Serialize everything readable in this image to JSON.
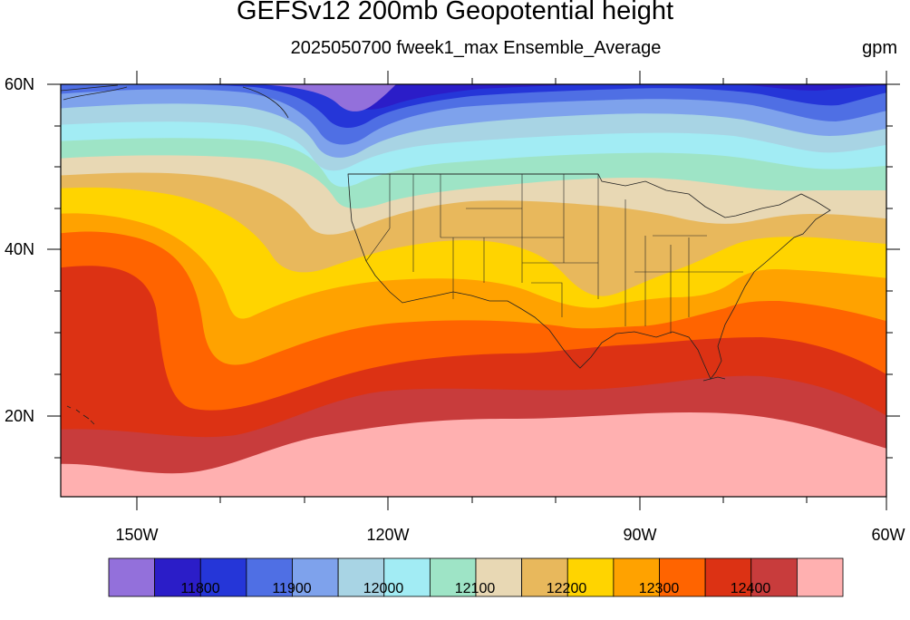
{
  "title": "GEFSv12 200mb Geopotential height",
  "subtitle": "2025050700 fweek1_max Ensemble_Average",
  "units": "gpm",
  "lat_labels": [
    "60N",
    "40N",
    "20N"
  ],
  "lon_labels": [
    "150W",
    "120W",
    "90W",
    "60W"
  ],
  "colorbar": {
    "colors": [
      "#9370db",
      "#2b1dc8",
      "#2536d8",
      "#4f6fe4",
      "#7ea2ec",
      "#a8d4e4",
      "#a2ecf4",
      "#9ee4c6",
      "#e8d8b4",
      "#e8b85c",
      "#ffd400",
      "#ffa200",
      "#ff6400",
      "#dc3214",
      "#c83c3c",
      "#ffb0b0"
    ],
    "labels": [
      "11800",
      "11900",
      "12000",
      "12100",
      "12200",
      "12300",
      "12400"
    ]
  }
}
